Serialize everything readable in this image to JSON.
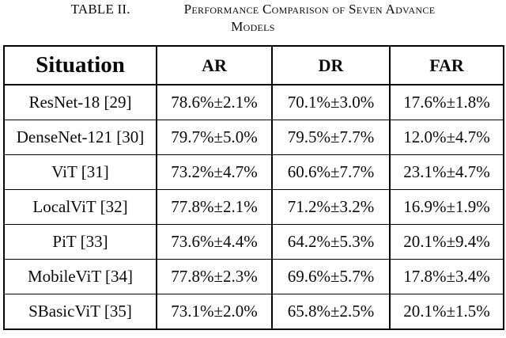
{
  "title": {
    "table_label": "TABLE II.",
    "caption_line1": "Performance Comparison of Seven Advance",
    "caption_line2": "Models"
  },
  "table": {
    "columns": [
      "Situation",
      "AR",
      "DR",
      "FAR"
    ],
    "rows": [
      {
        "model": "ResNet-18 [29]",
        "ar": "78.6%±2.1%",
        "dr": "70.1%±3.0%",
        "far": "17.6%±1.8%"
      },
      {
        "model": "DenseNet-121 [30]",
        "ar": "79.7%±5.0%",
        "dr": "79.5%±7.7%",
        "far": "12.0%±4.7%"
      },
      {
        "model": "ViT [31]",
        "ar": "73.2%±4.7%",
        "dr": "60.6%±7.7%",
        "far": "23.1%±4.7%"
      },
      {
        "model": "LocalViT [32]",
        "ar": "77.8%±2.1%",
        "dr": "71.2%±3.2%",
        "far": "16.9%±1.9%"
      },
      {
        "model": "PiT [33]",
        "ar": "73.6%±4.4%",
        "dr": "64.2%±5.3%",
        "far": "20.1%±9.4%"
      },
      {
        "model": "MobileViT [34]",
        "ar": "77.8%±2.3%",
        "dr": "69.6%±5.7%",
        "far": "17.8%±3.4%"
      },
      {
        "model": "SBasicViT [35]",
        "ar": "73.1%±2.0%",
        "dr": "65.8%±2.5%",
        "far": "20.1%±1.5%"
      }
    ]
  },
  "colors": {
    "text": "#0a0a0a",
    "background": "#ffffff",
    "border": "#000000"
  }
}
